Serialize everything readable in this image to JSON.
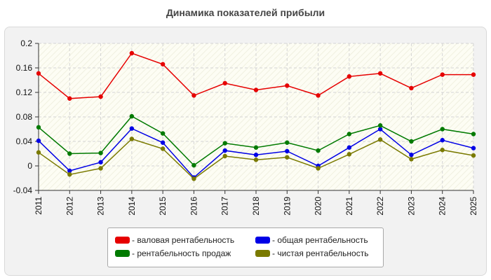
{
  "title": "Динамика показателей прибыли",
  "chart_data": {
    "type": "line",
    "title": "Динамика показателей прибыли",
    "x": [
      "2011",
      "2012",
      "2013",
      "2014",
      "2015",
      "2016",
      "2017",
      "2018",
      "2019",
      "2020",
      "2021",
      "2022",
      "2023",
      "2024",
      "2025"
    ],
    "y_ticks": [
      "0.2",
      "0.16",
      "0.12",
      "0.08",
      "0.04",
      "0",
      "-0.04"
    ],
    "ylim": [
      -0.04,
      0.2
    ],
    "grid": true,
    "legend_position": "bottom",
    "series": [
      {
        "name": "валовая рентабельность",
        "color": "#e60000",
        "values": [
          0.151,
          0.11,
          0.113,
          0.184,
          0.166,
          0.115,
          0.135,
          0.124,
          0.131,
          0.115,
          0.146,
          0.151,
          0.127,
          0.149,
          0.149
        ]
      },
      {
        "name": "общая рентабельность",
        "color": "#0000e6",
        "values": [
          0.041,
          -0.008,
          0.006,
          0.061,
          0.038,
          -0.019,
          0.025,
          0.018,
          0.024,
          0.0,
          0.03,
          0.06,
          0.018,
          0.042,
          0.029
        ]
      },
      {
        "name": "рентабельность продаж",
        "color": "#007a00",
        "values": [
          0.063,
          0.02,
          0.021,
          0.081,
          0.053,
          0.001,
          0.037,
          0.03,
          0.038,
          0.025,
          0.052,
          0.066,
          0.04,
          0.06,
          0.052
        ]
      },
      {
        "name": "чистая рентабельность",
        "color": "#7a7a00",
        "values": [
          0.022,
          -0.014,
          -0.004,
          0.044,
          0.028,
          -0.021,
          0.016,
          0.01,
          0.014,
          -0.004,
          0.019,
          0.043,
          0.011,
          0.026,
          0.017
        ]
      }
    ]
  },
  "legend": [
    {
      "label": "- валовая рентабельность",
      "color": "#e60000"
    },
    {
      "label": "- общая рентабельность",
      "color": "#0000e6"
    },
    {
      "label": "- рентабельность продаж",
      "color": "#007a00"
    },
    {
      "label": "- чистая рентабельность",
      "color": "#7a7a00"
    }
  ]
}
